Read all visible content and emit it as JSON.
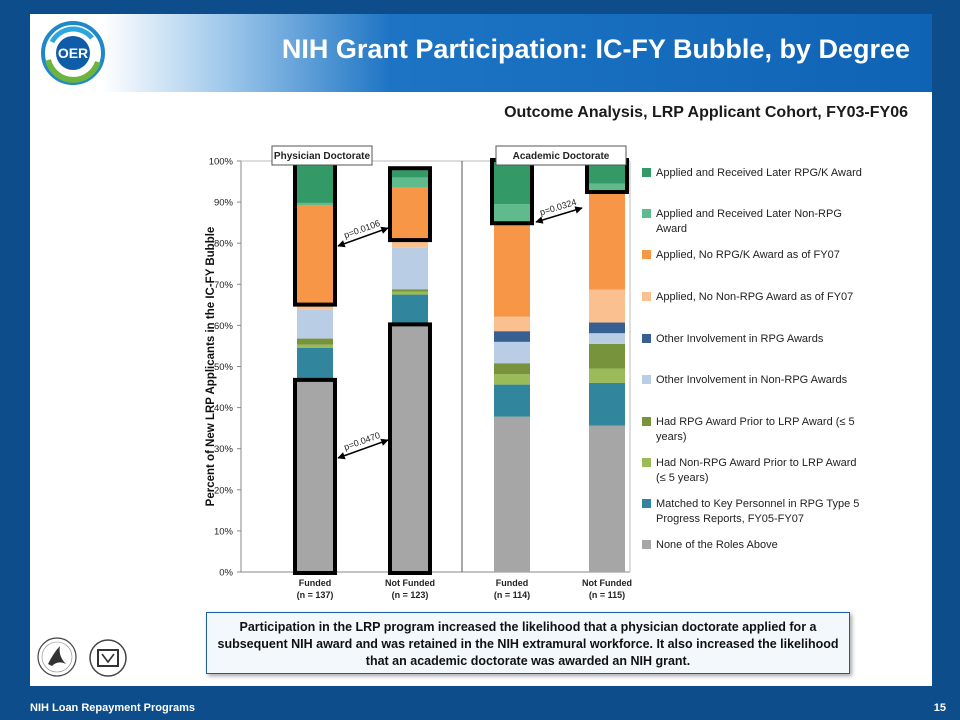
{
  "slide": {
    "title": "NIH Grant Participation: IC-FY Bubble, by Degree",
    "subtitle": "Outcome Analysis, LRP Applicant Cohort, FY03-FY06",
    "logo_text": "OER",
    "note": "Participation in the LRP program increased the likelihood that a physician doctorate applied for a subsequent NIH award and was retained in the NIH extramural workforce.  It also increased the likelihood that an academic doctorate was awarded an NIH grant.",
    "footer_left": "NIH Loan Repayment Programs",
    "footer_right": "15",
    "hhs_icon": "hhs-seal-icon",
    "nih_icon": "nih-logo-icon"
  },
  "chart_data": {
    "type": "bar",
    "stacked": true,
    "ylabel": "Percent of New LRP Applicants in the IC-FY Bubble",
    "yticks": [
      "0%",
      "10%",
      "20%",
      "30%",
      "40%",
      "50%",
      "60%",
      "70%",
      "80%",
      "90%",
      "100%"
    ],
    "ylim": [
      0,
      100
    ],
    "groups": [
      "Physician  Doctorate",
      "Academic Doctorate"
    ],
    "categories": [
      {
        "line1": "Funded",
        "line2": "(n = 137)"
      },
      {
        "line1": "Not Funded",
        "line2": "(n = 123)"
      },
      {
        "line1": "Funded",
        "line2": "(n = 114)"
      },
      {
        "line1": "Not Funded",
        "line2": "(n = 115)"
      }
    ],
    "legend_position": "right",
    "series": [
      {
        "name": "None of the Roles Above",
        "color": "#a6a6a6",
        "values": [
          46.5,
          60,
          37.8,
          35.6
        ]
      },
      {
        "name": "Matched to Key Personnel in RPG Type 5 Progress Reports, FY05-FY07",
        "color": "#31859c",
        "values": [
          8,
          7.5,
          7.8,
          10.4
        ]
      },
      {
        "name": "Had Non-RPG Award Prior to LRP Award (≤ 5 years)",
        "color": "#9bbb59",
        "values": [
          0.8,
          0.7,
          2.5,
          3.5
        ]
      },
      {
        "name": "Had RPG Award Prior to LRP Award (≤ 5 years)",
        "color": "#77933c",
        "values": [
          1.5,
          0.6,
          2.7,
          6
        ]
      },
      {
        "name": "Other Involvement in Non-RPG Awards",
        "color": "#b9cde5",
        "values": [
          7,
          10.2,
          5.2,
          2.6
        ]
      },
      {
        "name": "Other Involvement in RPG Awards",
        "color": "#366092",
        "values": [
          0,
          0,
          2.6,
          2.6
        ]
      },
      {
        "name": "Applied, No Non-RPG Award as of FY07",
        "color": "#fac090",
        "values": [
          1.5,
          2,
          3.5,
          8
        ]
      },
      {
        "name": "Applied, No RPG/K Award as of FY07",
        "color": "#f79646",
        "values": [
          24,
          12.5,
          23,
          24
        ]
      },
      {
        "name": "Applied and Received Later Non-RPG Award",
        "color": "#5fba8c",
        "values": [
          0.5,
          2.5,
          4.4,
          1.8
        ]
      },
      {
        "name": "Applied and Received Later RPG/K Award",
        "color": "#339966",
        "values": [
          9.7,
          2,
          10.5,
          5.5
        ]
      }
    ],
    "legend_order": [
      9,
      8,
      7,
      6,
      5,
      4,
      3,
      2,
      1,
      0
    ],
    "annotations": [
      {
        "text": "p=0.0106",
        "between": [
          0,
          1
        ],
        "at": "upper"
      },
      {
        "text": "p=0.0470",
        "between": [
          0,
          1
        ],
        "at": "lower"
      },
      {
        "text": "p=0.0324",
        "between": [
          2,
          3
        ],
        "at": "upper"
      }
    ]
  }
}
